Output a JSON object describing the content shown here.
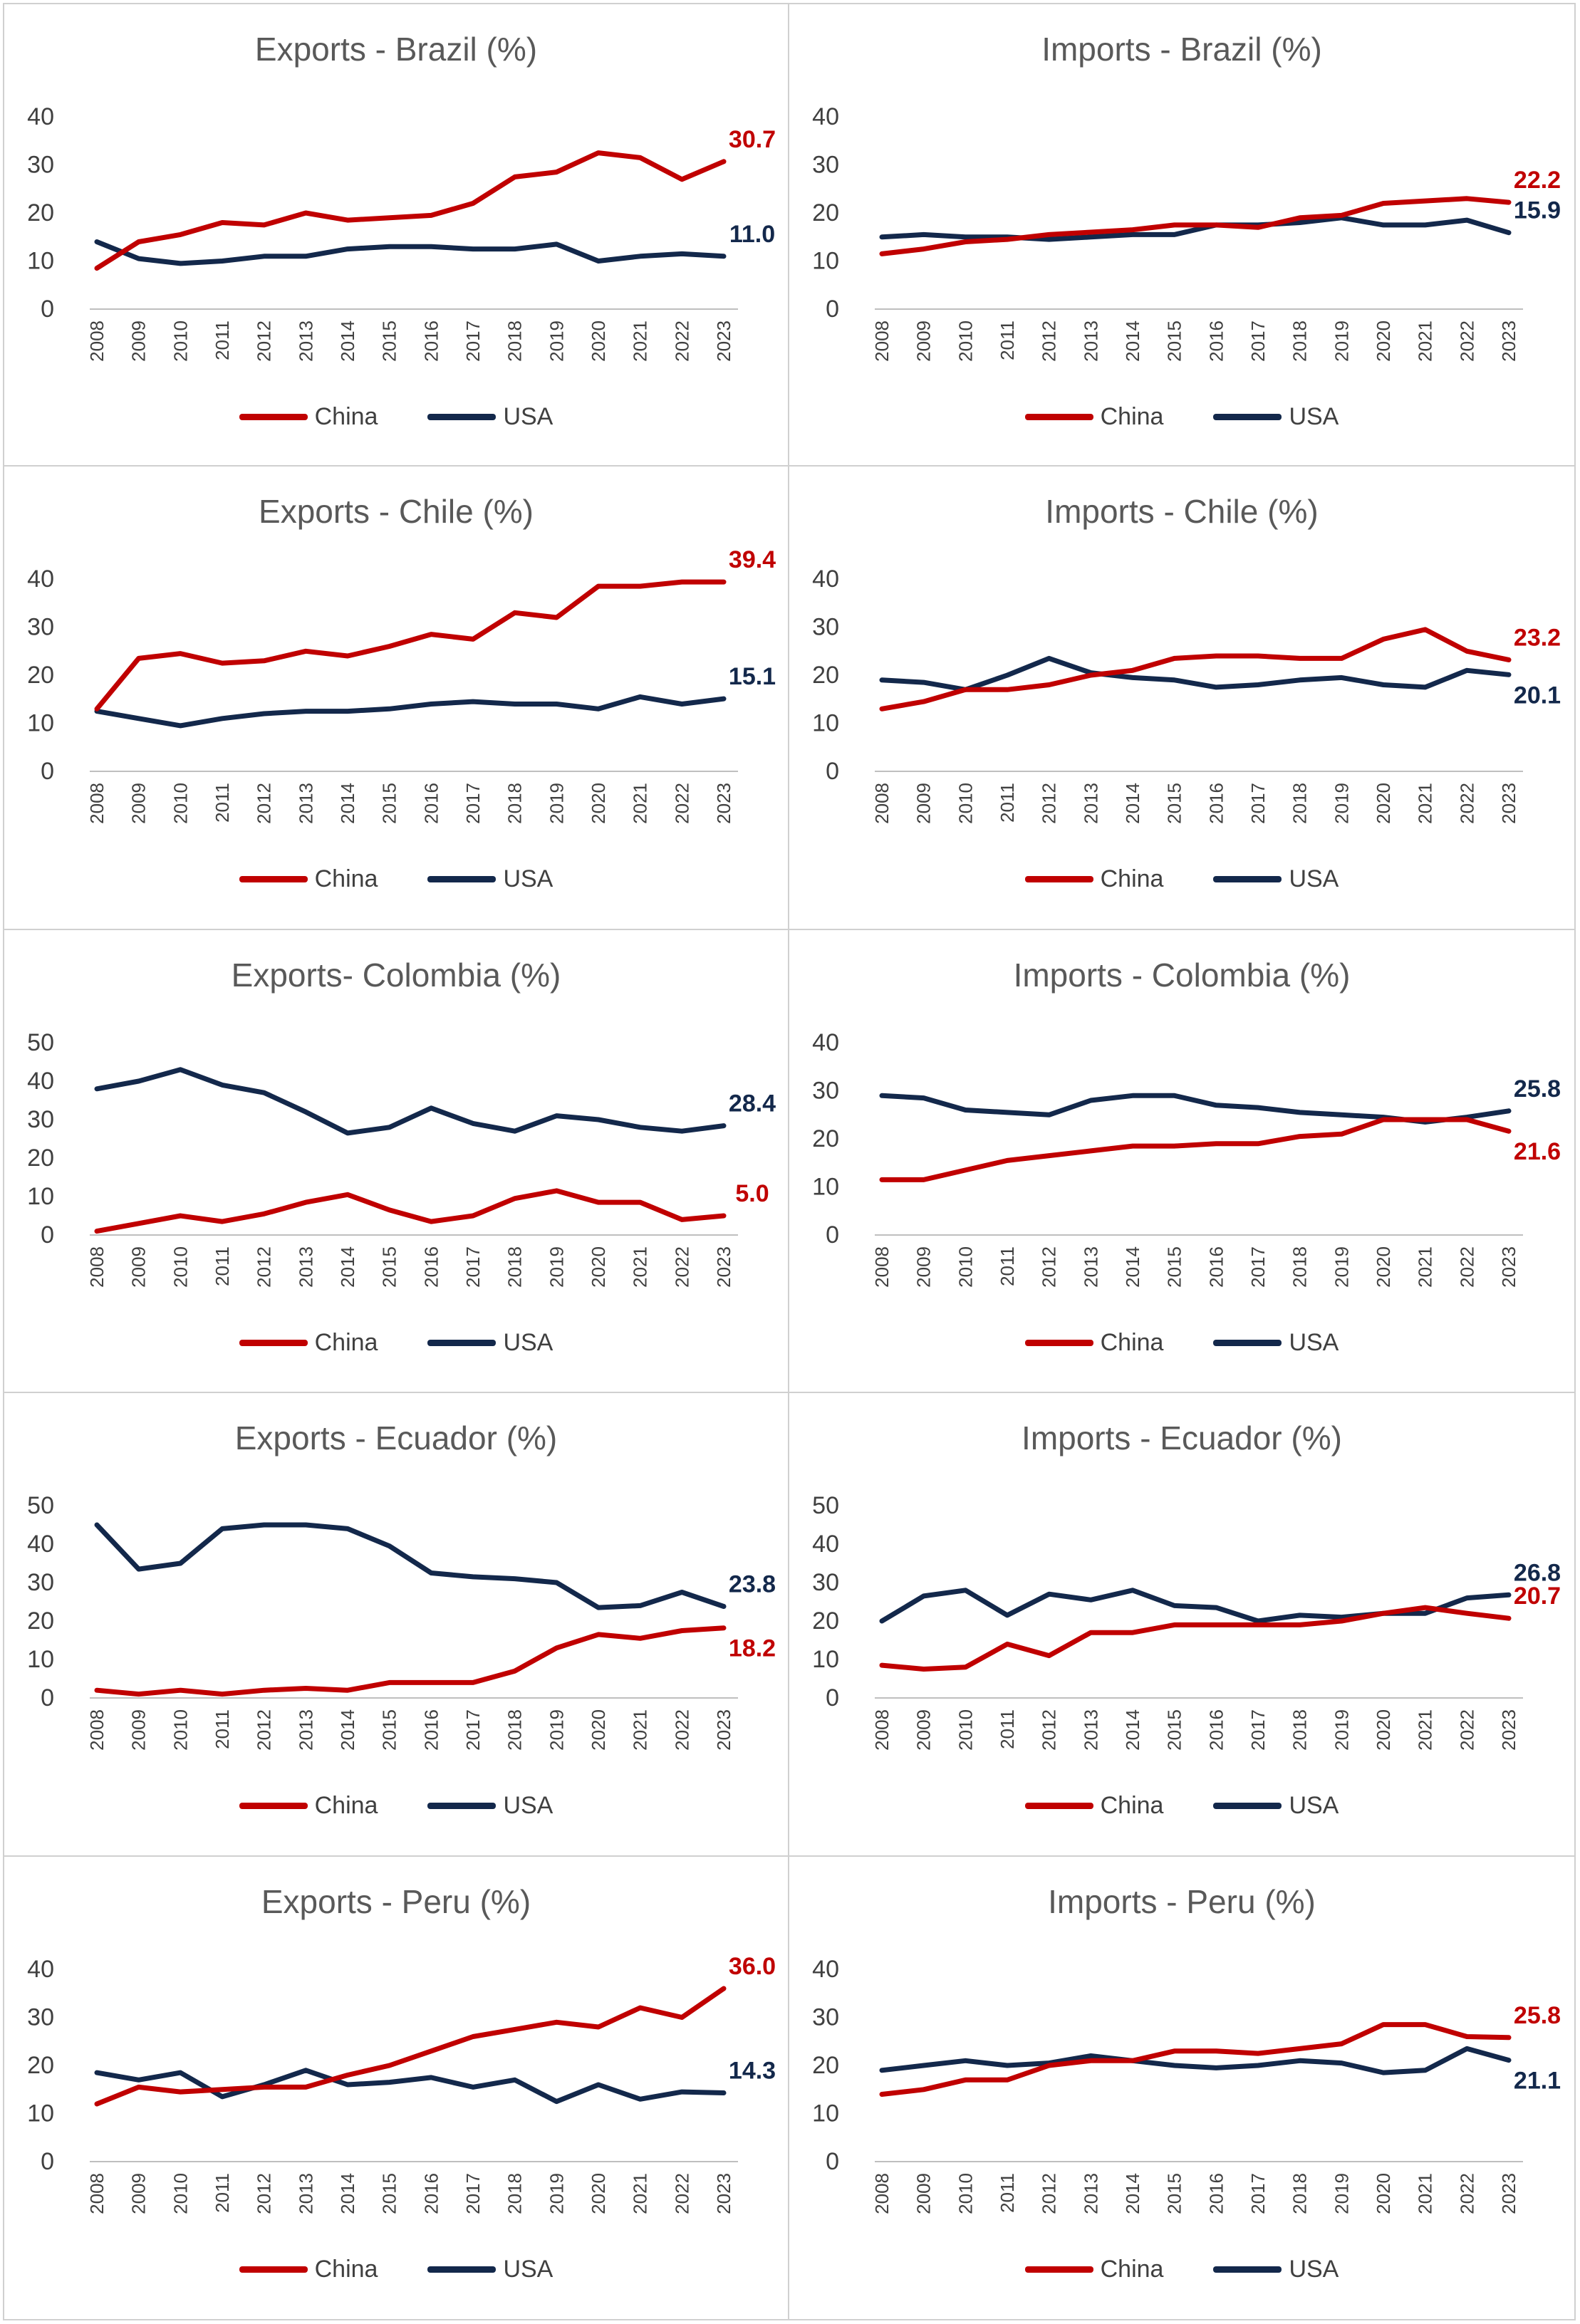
{
  "colors": {
    "china": "#c00000",
    "usa": "#13284b",
    "axis": "#bfbfbf",
    "tick_text": "#404040"
  },
  "legend": {
    "china_label": "China",
    "usa_label": "USA"
  },
  "panels": [
    {
      "title": "Exports - Brazil (%)"
    },
    {
      "title": "Imports - Brazil (%)"
    },
    {
      "title": "Exports - Chile (%)"
    },
    {
      "title": "Imports - Chile (%)"
    },
    {
      "title": "Exports- Colombia (%)"
    },
    {
      "title": "Imports - Colombia (%)"
    },
    {
      "title": "Exports - Ecuador (%)"
    },
    {
      "title": "Imports - Ecuador (%)"
    },
    {
      "title": "Exports - Peru (%)"
    },
    {
      "title": "Imports - Peru (%)"
    }
  ],
  "chart_data": [
    {
      "type": "line",
      "title": "Exports - Brazil (%)",
      "ylim": [
        0,
        40
      ],
      "yticks": [
        0,
        10,
        20,
        30,
        40
      ],
      "x": [
        "2008",
        "2009",
        "2010",
        "2011",
        "2012",
        "2013",
        "2014",
        "2015",
        "2016",
        "2017",
        "2018",
        "2019",
        "2020",
        "2021",
        "2022",
        "2023"
      ],
      "series": [
        {
          "name": "China",
          "values": [
            8.5,
            14,
            15.5,
            18,
            17.5,
            20,
            18.5,
            19,
            19.5,
            22,
            27.5,
            28.5,
            32.5,
            31.5,
            27,
            30.7
          ],
          "end_label": "30.7"
        },
        {
          "name": "USA",
          "values": [
            14,
            10.5,
            9.5,
            10,
            11,
            11,
            12.5,
            13,
            13,
            12.5,
            12.5,
            13.5,
            10,
            11,
            11.5,
            11.0
          ],
          "end_label": "11.0"
        }
      ]
    },
    {
      "type": "line",
      "title": "Imports - Brazil (%)",
      "ylim": [
        0,
        40
      ],
      "yticks": [
        0,
        10,
        20,
        30,
        40
      ],
      "x": [
        "2008",
        "2009",
        "2010",
        "2011",
        "2012",
        "2013",
        "2014",
        "2015",
        "2016",
        "2017",
        "2018",
        "2019",
        "2020",
        "2021",
        "2022",
        "2023"
      ],
      "series": [
        {
          "name": "China",
          "values": [
            11.5,
            12.5,
            14,
            14.5,
            15.5,
            16,
            16.5,
            17.5,
            17.5,
            17,
            19,
            19.5,
            22,
            22.5,
            23,
            22.2
          ],
          "end_label": "22.2"
        },
        {
          "name": "USA",
          "values": [
            15,
            15.5,
            15,
            15,
            14.5,
            15,
            15.5,
            15.5,
            17.5,
            17.5,
            18,
            19,
            17.5,
            17.5,
            18.5,
            15.9
          ],
          "end_label": "15.9"
        }
      ]
    },
    {
      "type": "line",
      "title": "Exports - Chile (%)",
      "ylim": [
        0,
        40
      ],
      "yticks": [
        0,
        10,
        20,
        30,
        40
      ],
      "x": [
        "2008",
        "2009",
        "2010",
        "2011",
        "2012",
        "2013",
        "2014",
        "2015",
        "2016",
        "2017",
        "2018",
        "2019",
        "2020",
        "2021",
        "2022",
        "2023"
      ],
      "series": [
        {
          "name": "China",
          "values": [
            13,
            23.5,
            24.5,
            22.5,
            23,
            25,
            24,
            26,
            28.5,
            27.5,
            33,
            32,
            38.5,
            38.5,
            39.4,
            39.4
          ],
          "end_label": "39.4"
        },
        {
          "name": "USA",
          "values": [
            12.5,
            11,
            9.5,
            11,
            12,
            12.5,
            12.5,
            13,
            14,
            14.5,
            14,
            14,
            13,
            15.5,
            14,
            15.1
          ],
          "end_label": "15.1"
        }
      ]
    },
    {
      "type": "line",
      "title": "Imports - Chile (%)",
      "ylim": [
        0,
        40
      ],
      "yticks": [
        0,
        10,
        20,
        30,
        40
      ],
      "x": [
        "2008",
        "2009",
        "2010",
        "2011",
        "2012",
        "2013",
        "2014",
        "2015",
        "2016",
        "2017",
        "2018",
        "2019",
        "2020",
        "2021",
        "2022",
        "2023"
      ],
      "series": [
        {
          "name": "China",
          "values": [
            13,
            14.5,
            17,
            17,
            18,
            20,
            21,
            23.5,
            24,
            24,
            23.5,
            23.5,
            27.5,
            29.5,
            25,
            23.2
          ],
          "end_label": "23.2"
        },
        {
          "name": "USA",
          "values": [
            19,
            18.5,
            17,
            20,
            23.5,
            20.5,
            19.5,
            19,
            17.5,
            18,
            19,
            19.5,
            18,
            17.5,
            21,
            20.1
          ],
          "end_label": "20.1"
        }
      ]
    },
    {
      "type": "line",
      "title": "Exports- Colombia (%)",
      "ylim": [
        0,
        50
      ],
      "yticks": [
        0,
        10,
        20,
        30,
        40,
        50
      ],
      "x": [
        "2008",
        "2009",
        "2010",
        "2011",
        "2012",
        "2013",
        "2014",
        "2015",
        "2016",
        "2017",
        "2018",
        "2019",
        "2020",
        "2021",
        "2022",
        "2023"
      ],
      "series": [
        {
          "name": "China",
          "values": [
            1,
            3,
            5,
            3.5,
            5.5,
            8.5,
            10.5,
            6.5,
            3.5,
            5,
            9.5,
            11.5,
            8.5,
            8.5,
            4,
            5.0
          ],
          "end_label": "5.0"
        },
        {
          "name": "USA",
          "values": [
            38,
            40,
            43,
            39,
            37,
            32,
            26.5,
            28,
            33,
            29,
            27,
            31,
            30,
            28,
            27,
            28.4
          ],
          "end_label": "28.4"
        }
      ]
    },
    {
      "type": "line",
      "title": "Imports - Colombia (%)",
      "ylim": [
        0,
        40
      ],
      "yticks": [
        0,
        10,
        20,
        30,
        40
      ],
      "x": [
        "2008",
        "2009",
        "2010",
        "2011",
        "2012",
        "2013",
        "2014",
        "2015",
        "2016",
        "2017",
        "2018",
        "2019",
        "2020",
        "2021",
        "2022",
        "2023"
      ],
      "series": [
        {
          "name": "China",
          "values": [
            11.5,
            11.5,
            13.5,
            15.5,
            16.5,
            17.5,
            18.5,
            18.5,
            19,
            19,
            20.5,
            21,
            24,
            24,
            24,
            21.6
          ],
          "end_label": "21.6"
        },
        {
          "name": "USA",
          "values": [
            29,
            28.5,
            26,
            25.5,
            25,
            28,
            29,
            29,
            27,
            26.5,
            25.5,
            25,
            24.5,
            23.5,
            24.5,
            25.8
          ],
          "end_label": "25.8"
        }
      ]
    },
    {
      "type": "line",
      "title": "Exports - Ecuador (%)",
      "ylim": [
        0,
        50
      ],
      "yticks": [
        0,
        10,
        20,
        30,
        40,
        50
      ],
      "x": [
        "2008",
        "2009",
        "2010",
        "2011",
        "2012",
        "2013",
        "2014",
        "2015",
        "2016",
        "2017",
        "2018",
        "2019",
        "2020",
        "2021",
        "2022",
        "2023"
      ],
      "series": [
        {
          "name": "China",
          "values": [
            2,
            1,
            2,
            1,
            2,
            2.5,
            2,
            4,
            4,
            4,
            7,
            13,
            16.5,
            15.5,
            17.5,
            18.2
          ],
          "end_label": "18.2"
        },
        {
          "name": "USA",
          "values": [
            45,
            33.5,
            35,
            44,
            45,
            45,
            44,
            39.5,
            32.5,
            31.5,
            31,
            30,
            23.5,
            24,
            27.5,
            23.8
          ],
          "end_label": "23.8"
        }
      ]
    },
    {
      "type": "line",
      "title": "Imports - Ecuador (%)",
      "ylim": [
        0,
        50
      ],
      "yticks": [
        0,
        10,
        20,
        30,
        40,
        50
      ],
      "x": [
        "2008",
        "2009",
        "2010",
        "2011",
        "2012",
        "2013",
        "2014",
        "2015",
        "2016",
        "2017",
        "2018",
        "2019",
        "2020",
        "2021",
        "2022",
        "2023"
      ],
      "series": [
        {
          "name": "China",
          "values": [
            8.5,
            7.5,
            8,
            14,
            11,
            17,
            17,
            19,
            19,
            19,
            19,
            20,
            22,
            23.5,
            22,
            20.7
          ],
          "end_label": "20.7"
        },
        {
          "name": "USA",
          "values": [
            20,
            26.5,
            28,
            21.5,
            27,
            25.5,
            28,
            24,
            23.5,
            20,
            21.5,
            21,
            22,
            22,
            26,
            26.8
          ],
          "end_label": "26.8"
        }
      ]
    },
    {
      "type": "line",
      "title": "Exports - Peru (%)",
      "ylim": [
        0,
        40
      ],
      "yticks": [
        0,
        10,
        20,
        30,
        40
      ],
      "x": [
        "2008",
        "2009",
        "2010",
        "2011",
        "2012",
        "2013",
        "2014",
        "2015",
        "2016",
        "2017",
        "2018",
        "2019",
        "2020",
        "2021",
        "2022",
        "2023"
      ],
      "series": [
        {
          "name": "China",
          "values": [
            12,
            15.5,
            14.5,
            15,
            15.5,
            15.5,
            18,
            20,
            23,
            26,
            27.5,
            29,
            28,
            32,
            30,
            36.0
          ],
          "end_label": "36.0"
        },
        {
          "name": "USA",
          "values": [
            18.5,
            17,
            18.5,
            13.5,
            16,
            19,
            16,
            16.5,
            17.5,
            15.5,
            17,
            12.5,
            16,
            13,
            14.5,
            14.3
          ],
          "end_label": "14.3"
        }
      ]
    },
    {
      "type": "line",
      "title": "Imports - Peru (%)",
      "ylim": [
        0,
        40
      ],
      "yticks": [
        0,
        10,
        20,
        30,
        40
      ],
      "x": [
        "2008",
        "2009",
        "2010",
        "2011",
        "2012",
        "2013",
        "2014",
        "2015",
        "2016",
        "2017",
        "2018",
        "2019",
        "2020",
        "2021",
        "2022",
        "2023"
      ],
      "series": [
        {
          "name": "China",
          "values": [
            14,
            15,
            17,
            17,
            20,
            21,
            21,
            23,
            23,
            22.5,
            23.5,
            24.5,
            28.5,
            28.5,
            26,
            25.8
          ],
          "end_label": "25.8"
        },
        {
          "name": "USA",
          "values": [
            19,
            20,
            21,
            20,
            20.5,
            22,
            21,
            20,
            19.5,
            20,
            21,
            20.5,
            18.5,
            19,
            23.5,
            21.1
          ],
          "end_label": "21.1"
        }
      ]
    }
  ]
}
